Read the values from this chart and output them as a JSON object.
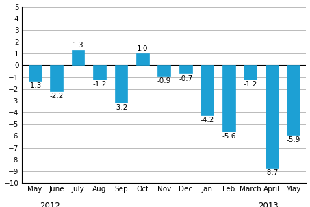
{
  "categories": [
    "May",
    "June",
    "July",
    "Aug",
    "Sep",
    "Oct",
    "Nov",
    "Dec",
    "Jan",
    "Feb",
    "March",
    "April",
    "May"
  ],
  "values": [
    -1.3,
    -2.2,
    1.3,
    -1.2,
    -3.2,
    1.0,
    -0.9,
    -0.7,
    -4.2,
    -5.6,
    -1.2,
    -8.7,
    -5.9
  ],
  "bar_color": "#1da0d4",
  "ylim": [
    -10,
    5
  ],
  "yticks": [
    -10,
    -9,
    -8,
    -7,
    -6,
    -5,
    -4,
    -3,
    -2,
    -1,
    0,
    1,
    2,
    3,
    4,
    5
  ],
  "label_fontsize": 7.5,
  "tick_fontsize": 7.5,
  "year_fontsize": 8.5,
  "background_color": "#ffffff",
  "grid_color": "#b0b0b0"
}
